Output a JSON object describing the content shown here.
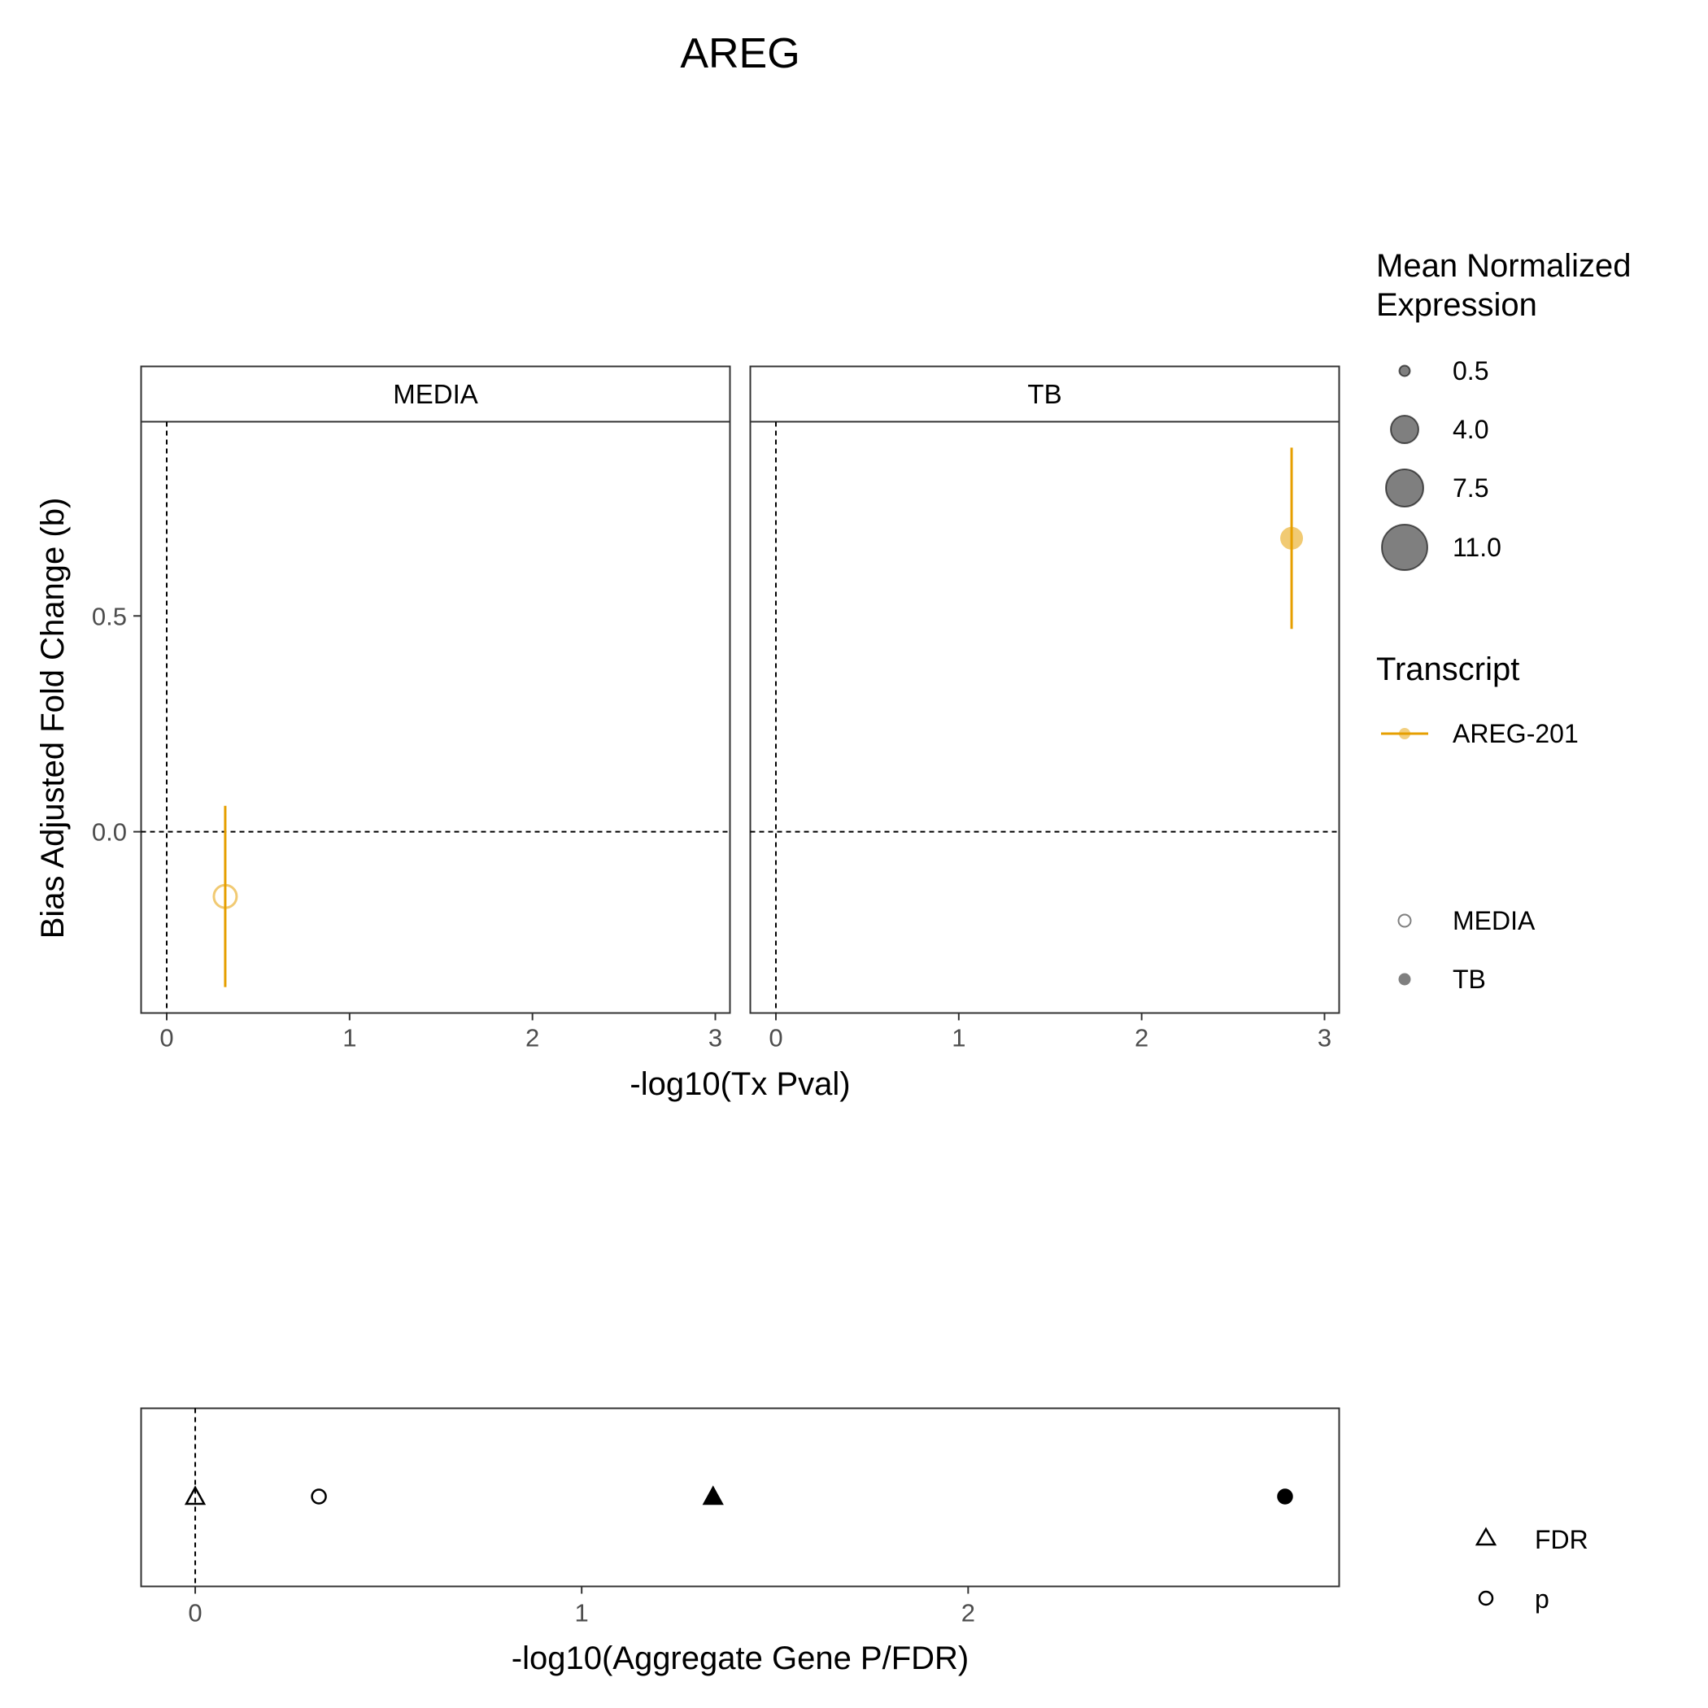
{
  "title": "AREG",
  "chart_data": [
    {
      "type": "scatter",
      "facets": [
        "MEDIA",
        "TB"
      ],
      "xlabel": "-log10(Tx Pval)",
      "ylabel": "Bias Adjusted Fold Change (b)",
      "xlim": [
        -0.14,
        3.08
      ],
      "ylim": [
        -0.42,
        0.95
      ],
      "x_ticks": [
        "0",
        "1",
        "2",
        "3"
      ],
      "y_ticks": [
        "0.0",
        "0.5"
      ],
      "reference_lines": {
        "x": 0,
        "y": 0
      },
      "grid": false,
      "points": [
        {
          "facet": "MEDIA",
          "transcript": "AREG-201",
          "condition": "MEDIA",
          "x": 0.32,
          "y": -0.15,
          "ymin": -0.36,
          "ymax": 0.06,
          "expression": 4.0,
          "filled": false
        },
        {
          "facet": "TB",
          "transcript": "AREG-201",
          "condition": "TB",
          "x": 2.82,
          "y": 0.68,
          "ymin": 0.47,
          "ymax": 0.89,
          "expression": 4.0,
          "filled": true
        }
      ]
    },
    {
      "type": "scatter",
      "xlabel": "-log10(Aggregate Gene P/FDR)",
      "xlim": [
        -0.14,
        2.96
      ],
      "x_ticks": [
        "0",
        "1",
        "2"
      ],
      "reference_lines": {
        "x": 0
      },
      "points": [
        {
          "measure": "FDR",
          "condition": "MEDIA",
          "x": 0.0,
          "filled": false
        },
        {
          "measure": "p",
          "condition": "MEDIA",
          "x": 0.32,
          "filled": false
        },
        {
          "measure": "FDR",
          "condition": "TB",
          "x": 1.34,
          "filled": true
        },
        {
          "measure": "p",
          "condition": "TB",
          "x": 2.82,
          "filled": true
        }
      ]
    }
  ],
  "legend": {
    "size_title_line1": "Mean Normalized",
    "size_title_line2": "Expression",
    "size_items": [
      "0.5",
      "4.0",
      "7.5",
      "11.0"
    ],
    "transcript_title": "Transcript",
    "transcript_item": "AREG-201",
    "transcript_color": "#E69F00",
    "condition_items": [
      "MEDIA",
      "TB"
    ],
    "shape_items": [
      "FDR",
      "p"
    ]
  }
}
